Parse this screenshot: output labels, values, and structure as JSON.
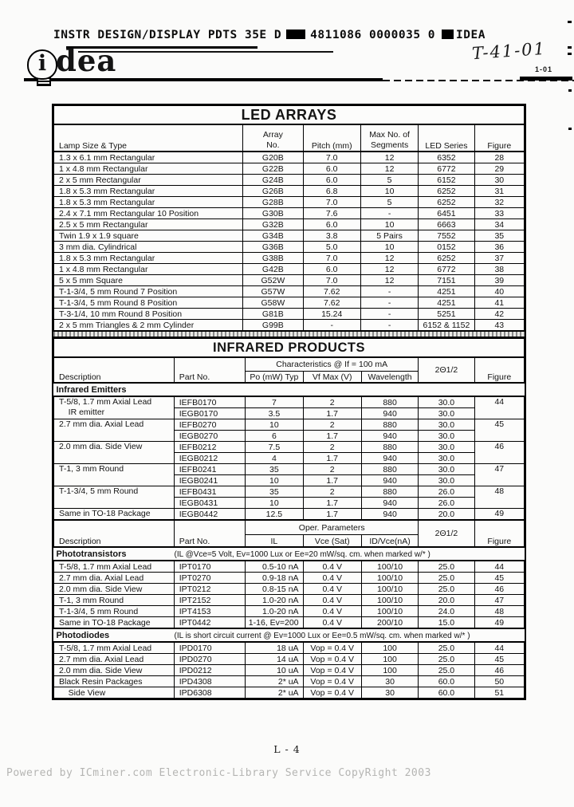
{
  "page": {
    "ocr_left": "INSTR DESIGN/DISPLAY PDTS  35E D",
    "ocr_code": "4811086 0000035 0",
    "ocr_brand": "IDEA",
    "handwritten_note": "T-41-01",
    "logo_i": "i",
    "logo_rest": "dea",
    "page_ref": "1-01",
    "footer_page": "L - 4",
    "watermark": "Powered by ICminer.com Electronic-Library Service CopyRight 2003"
  },
  "led_arrays": {
    "title": "LED ARRAYS",
    "columns": [
      "Lamp Size & Type",
      "Array\nNo.",
      "Pitch (mm)",
      "Max No. of\nSegments",
      "LED Series",
      "Figure"
    ],
    "rows": [
      [
        "1.3 x 6.1 mm Rectangular",
        "G20B",
        "7.0",
        "12",
        "6352",
        "28"
      ],
      [
        "1 x 4.8 mm Rectangular",
        "G22B",
        "6.0",
        "12",
        "6772",
        "29"
      ],
      [
        "2 x 5 mm Rectangular",
        "G24B",
        "6.0",
        "5",
        "6152",
        "30"
      ],
      [
        "1.8 x 5.3 mm Rectangular",
        "G26B",
        "6.8",
        "10",
        "6252",
        "31"
      ],
      [
        "1.8 x 5.3 mm Rectangular",
        "G28B",
        "7.0",
        "5",
        "6252",
        "32"
      ],
      [
        "2.4 x 7.1 mm Rectangular 10 Position",
        "G30B",
        "7.6",
        "-",
        "6451",
        "33"
      ],
      [
        "2.5 x 5 mm Rectangular",
        "G32B",
        "6.0",
        "10",
        "6663",
        "34"
      ],
      [
        "Twin 1.9 x 1.9 square",
        "G34B",
        "3.8",
        "5 Pairs",
        "7552",
        "35"
      ],
      [
        "3 mm dia. Cylindrical",
        "G36B",
        "5.0",
        "10",
        "0152",
        "36"
      ],
      [
        "1.8 x 5.3 mm Rectangular",
        "G38B",
        "7.0",
        "12",
        "6252",
        "37"
      ],
      [
        "1 x 4.8 mm Rectangular",
        "G42B",
        "6.0",
        "12",
        "6772",
        "38"
      ],
      [
        "5 x 5 mm Square",
        "G52W",
        "7.0",
        "12",
        "7151",
        "39"
      ],
      [
        "T-1-3/4, 5 mm Round 7 Position",
        "G57W",
        "7.62",
        "-",
        "4251",
        "40"
      ],
      [
        "T-1-3/4, 5 mm Round 8 Position",
        "G58W",
        "7.62",
        "-",
        "4251",
        "41"
      ],
      [
        "T-3-1/4, 10 mm Round 8 Position",
        "G81B",
        "15.24",
        "-",
        "5251",
        "42"
      ],
      [
        "2 x 5 mm Triangles & 2 mm Cylinder",
        "G99B",
        "-",
        "-",
        "6152 & 1152",
        "43"
      ]
    ]
  },
  "infrared": {
    "title": "INFRARED PRODUCTS",
    "header1": {
      "description": "Description",
      "part_no": "Part No.",
      "group": "Characteristics @ If = 100 mA",
      "cols": [
        "Po (mW) Typ",
        "Vf Max (V)",
        "Wavelength"
      ],
      "angle": "2Θ1/2",
      "figure": "Figure"
    },
    "emitters": {
      "label": "Infrared Emitters",
      "groups": [
        {
          "desc": "T-5/8, 1.7 mm Axial Lead\n    IR emitter",
          "figure": "44",
          "parts": [
            [
              "IEFB0170",
              "7",
              "2",
              "880",
              "30.0"
            ],
            [
              "IEGB0170",
              "3.5",
              "1.7",
              "940",
              "30.0"
            ]
          ]
        },
        {
          "desc": "2.7 mm dia. Axial Lead",
          "figure": "45",
          "parts": [
            [
              "IEFB0270",
              "10",
              "2",
              "880",
              "30.0"
            ],
            [
              "IEGB0270",
              "6",
              "1.7",
              "940",
              "30.0"
            ]
          ]
        },
        {
          "desc": "2.0 mm dia. Side View",
          "figure": "46",
          "parts": [
            [
              "IEFB0212",
              "7.5",
              "2",
              "880",
              "30.0"
            ],
            [
              "IEGB0212",
              "4",
              "1.7",
              "940",
              "30.0"
            ]
          ]
        },
        {
          "desc": "T-1, 3 mm Round",
          "figure": "47",
          "parts": [
            [
              "IEFB0241",
              "35",
              "2",
              "880",
              "30.0"
            ],
            [
              "IEGB0241",
              "10",
              "1.7",
              "940",
              "30.0"
            ]
          ]
        },
        {
          "desc": "T-1-3/4, 5 mm Round",
          "figure": "48",
          "parts": [
            [
              "IEFB0431",
              "35",
              "2",
              "880",
              "26.0"
            ],
            [
              "IEGB0431",
              "10",
              "1.7",
              "940",
              "26.0"
            ]
          ]
        },
        {
          "desc": "Same in TO-18 Package",
          "figure": "49",
          "parts": [
            [
              "IEGB0442",
              "12.5",
              "1.7",
              "940",
              "20.0"
            ]
          ]
        }
      ]
    },
    "header2": {
      "description": "Description",
      "part_no": "Part No.",
      "group": "Oper. Parameters",
      "cols": [
        "IL",
        "Vce (Sat)",
        "ID/Vce(nA)"
      ],
      "angle": "2Θ1/2",
      "figure": "Figure"
    },
    "phototransistors": {
      "label": "Phototransistors",
      "note": "(IL @Vce=5 Volt, Ev=1000 Lux or Ee=20 mW/sq. cm. when marked w/* )",
      "rows": [
        [
          "T-5/8, 1.7 mm Axial Lead",
          "IPT0170",
          "0.5-10 nA",
          "0.4 V",
          "100/10",
          "25.0",
          "44"
        ],
        [
          "2.7 mm dia. Axial Lead",
          "IPT0270",
          "0.9-18 nA",
          "0.4 V",
          "100/10",
          "25.0",
          "45"
        ],
        [
          "2.0 mm dia. Side View",
          "IPT0212",
          "0.8-15 nA",
          "0.4 V",
          "100/10",
          "25.0",
          "46"
        ],
        [
          "T-1, 3 mm Round",
          "IPT2152",
          "1.0-20 nA",
          "0.4 V",
          "100/10",
          "20.0",
          "47"
        ],
        [
          "T-1-3/4, 5 mm Round",
          "IPT4153",
          "1.0-20 nA",
          "0.4 V",
          "100/10",
          "24.0",
          "48"
        ],
        [
          "Same in TO-18 Package",
          "IPT0442",
          "1-16, Ev=200",
          "0.4 V",
          "200/10",
          "15.0",
          "49"
        ]
      ]
    },
    "photodiodes": {
      "label": "Photodiodes",
      "note": "(IL is short circuit current @ Ev=1000 Lux or Ee=0.5 mW/sq. cm. when marked w/* )",
      "rows": [
        [
          "T-5/8, 1.7 mm Axial Lead",
          "IPD0170",
          "18 uA",
          "Vop = 0.4 V",
          "100",
          "25.0",
          "44"
        ],
        [
          "2.7 mm dia. Axial Lead",
          "IPD0270",
          "14 uA",
          "Vop = 0.4 V",
          "100",
          "25.0",
          "45"
        ],
        [
          "2.0 mm dia. Side View",
          "IPD0212",
          "10 uA",
          "Vop = 0.4 V",
          "100",
          "25.0",
          "46"
        ],
        [
          "Black Resin Packages",
          "IPD4308",
          "2* uA",
          "Vop = 0.4 V",
          "30",
          "60.0",
          "50"
        ],
        [
          "    Side View",
          "IPD6308",
          "2* uA",
          "Vop = 0.4 V",
          "30",
          "60.0",
          "51"
        ]
      ]
    }
  }
}
